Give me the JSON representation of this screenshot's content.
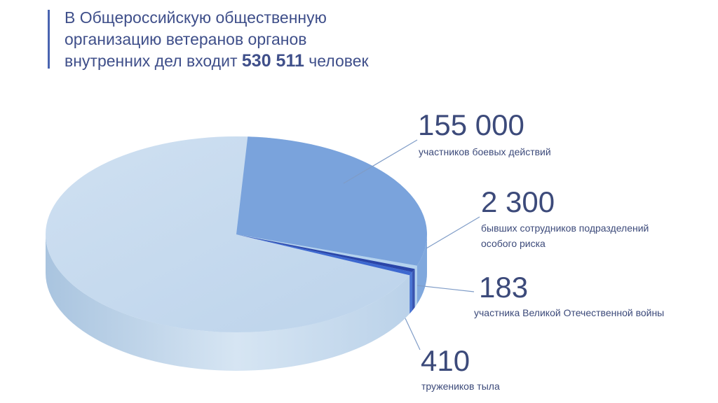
{
  "title": {
    "line1": "В Общероссийскую общественную",
    "line2": "организацию ветеранов органов",
    "line3_pre": "внутренних дел входит",
    "total": "530 511",
    "line3_post": "человек"
  },
  "chart_data": {
    "type": "pie",
    "title": "В Общероссийскую общественную организацию ветеранов органов внутренних дел входит 530 511 человек",
    "total": 530511,
    "slices": [
      {
        "value": 155000,
        "display": "155 000",
        "label": "участников боевых действий",
        "color": "#7aa3dc"
      },
      {
        "value": 2300,
        "display": "2 300",
        "label_lines": [
          "бывших сотрудников подразделений",
          "особого риска"
        ],
        "color": "#b4d2ee"
      },
      {
        "value": 183,
        "display": "183",
        "label": "участника Великой Отечественной войны",
        "color": "#2a45a8"
      },
      {
        "value": 410,
        "display": "410",
        "label": "тружеников тыла",
        "color": "#3d68d0"
      }
    ],
    "remainder_color": "#c8dcef"
  }
}
